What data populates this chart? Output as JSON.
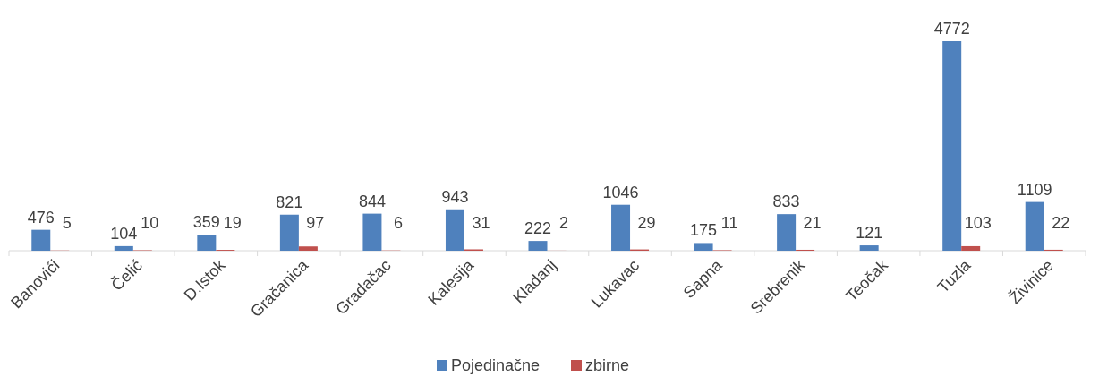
{
  "chart_data": {
    "type": "bar",
    "categories": [
      "Banovići",
      "Čelić",
      "D.Istok",
      "Gračanica",
      "Gradačac",
      "Kalesija",
      "Kladanj",
      "Lukavac",
      "Sapna",
      "Srebrenik",
      "Teočak",
      "Tuzla",
      "Živinice"
    ],
    "series": [
      {
        "name": "Pojedinačne",
        "color": "#4f81bd",
        "values": [
          476,
          104,
          359,
          821,
          844,
          943,
          222,
          1046,
          175,
          833,
          121,
          4772,
          1109
        ]
      },
      {
        "name": "zbirne",
        "color": "#c0504d",
        "values": [
          5,
          10,
          19,
          97,
          6,
          31,
          2,
          29,
          11,
          21,
          null,
          103,
          22
        ]
      }
    ],
    "data_labels": true,
    "legend": "bottom"
  }
}
